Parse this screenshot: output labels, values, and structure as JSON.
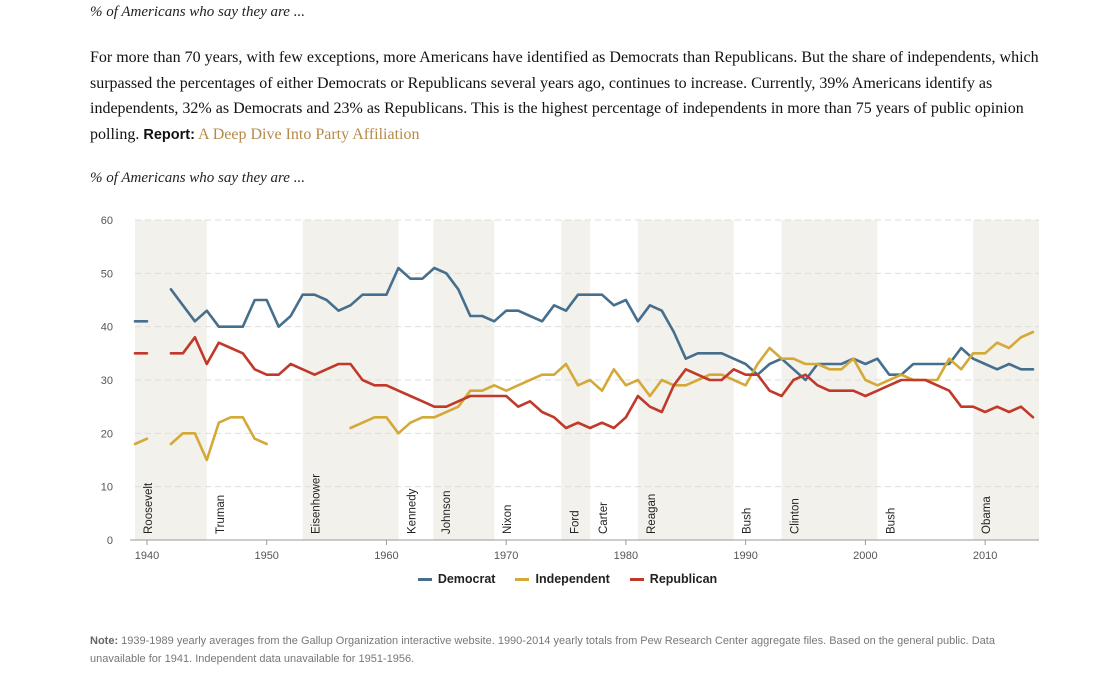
{
  "header": {
    "caption": "% of Americans who say they are ...",
    "intro": "For more than 70 years, with few exceptions, more Americans have identified as Democrats than Republicans. But the share of independents, which surpassed the percentages of either Democrats or Republicans several years ago, continues to increase. Currently, 39% Americans identify as independents, 32% as Democrats and 23% as Republicans. This is the highest percentage of independents in more than 75 years of public opinion polling.",
    "report_label": "Report:",
    "report_link": "A Deep Dive Into Party Affiliation"
  },
  "chart_caption": "% of Americans who say they are ...",
  "colors": {
    "democrat": "#466f8e",
    "independent": "#d4a937",
    "republican": "#c0392b",
    "band": "#f3f1ec",
    "grid": "#dddddd"
  },
  "note": {
    "label": "Note:",
    "text": "1939-1989 yearly averages from the Gallup Organization interactive website. 1990-2014 yearly totals from Pew Research Center aggregate files. Based on the general public. Data unavailable for 1941. Independent data unavailable for 1951-1956."
  },
  "chart_data": {
    "type": "line",
    "title": "",
    "xlabel": "",
    "ylabel": "",
    "xlim": [
      1939,
      2014
    ],
    "ylim": [
      0,
      60
    ],
    "y_ticks": [
      0,
      10,
      20,
      30,
      40,
      50,
      60
    ],
    "x_ticks": [
      1940,
      1950,
      1960,
      1970,
      1980,
      1990,
      2000,
      2010
    ],
    "grid": true,
    "legend_position": "bottom-center",
    "presidencies": [
      {
        "name": "Roosevelt",
        "start": 1939,
        "end": 1945,
        "shaded": true
      },
      {
        "name": "Truman",
        "start": 1945,
        "end": 1953,
        "shaded": false
      },
      {
        "name": "Eisenhower",
        "start": 1953,
        "end": 1961,
        "shaded": true
      },
      {
        "name": "Kennedy",
        "start": 1961,
        "end": 1963.9,
        "shaded": false
      },
      {
        "name": "Johnson",
        "start": 1963.9,
        "end": 1969,
        "shaded": true
      },
      {
        "name": "Nixon",
        "start": 1969,
        "end": 1974.6,
        "shaded": false
      },
      {
        "name": "Ford",
        "start": 1974.6,
        "end": 1977,
        "shaded": true
      },
      {
        "name": "Carter",
        "start": 1977,
        "end": 1981,
        "shaded": false
      },
      {
        "name": "Reagan",
        "start": 1981,
        "end": 1989,
        "shaded": true
      },
      {
        "name": "Bush",
        "start": 1989,
        "end": 1993,
        "shaded": false
      },
      {
        "name": "Clinton",
        "start": 1993,
        "end": 2001,
        "shaded": true
      },
      {
        "name": "Bush",
        "start": 2001,
        "end": 2009,
        "shaded": false
      },
      {
        "name": "Obama",
        "start": 2009,
        "end": 2014.5,
        "shaded": true
      }
    ],
    "series": [
      {
        "name": "Democrat",
        "segments": [
          [
            [
              1939,
              41
            ],
            [
              1940,
              41
            ]
          ],
          [
            [
              1942,
              47
            ],
            [
              1943,
              44
            ],
            [
              1944,
              41
            ],
            [
              1945,
              43
            ],
            [
              1946,
              40
            ],
            [
              1947,
              40
            ],
            [
              1948,
              40
            ],
            [
              1949,
              45
            ],
            [
              1950,
              45
            ],
            [
              1951,
              40
            ],
            [
              1952,
              42
            ],
            [
              1953,
              46
            ],
            [
              1954,
              46
            ],
            [
              1955,
              45
            ],
            [
              1956,
              43
            ],
            [
              1957,
              44
            ],
            [
              1958,
              46
            ],
            [
              1959,
              46
            ],
            [
              1960,
              46
            ],
            [
              1961,
              51
            ],
            [
              1962,
              49
            ],
            [
              1963,
              49
            ],
            [
              1964,
              51
            ],
            [
              1965,
              50
            ],
            [
              1966,
              47
            ],
            [
              1967,
              42
            ],
            [
              1968,
              42
            ],
            [
              1969,
              41
            ],
            [
              1970,
              43
            ],
            [
              1971,
              43
            ],
            [
              1972,
              42
            ],
            [
              1973,
              41
            ],
            [
              1974,
              44
            ],
            [
              1975,
              43
            ],
            [
              1976,
              46
            ],
            [
              1977,
              46
            ],
            [
              1978,
              46
            ],
            [
              1979,
              44
            ],
            [
              1980,
              45
            ],
            [
              1981,
              41
            ],
            [
              1982,
              44
            ],
            [
              1983,
              43
            ],
            [
              1984,
              39
            ],
            [
              1985,
              34
            ],
            [
              1986,
              35
            ],
            [
              1987,
              35
            ],
            [
              1988,
              35
            ],
            [
              1989,
              34
            ],
            [
              1990,
              33
            ],
            [
              1991,
              31
            ],
            [
              1992,
              33
            ],
            [
              1993,
              34
            ],
            [
              1994,
              32
            ],
            [
              1995,
              30
            ],
            [
              1996,
              33
            ],
            [
              1997,
              33
            ],
            [
              1998,
              33
            ],
            [
              1999,
              34
            ],
            [
              2000,
              33
            ],
            [
              2001,
              34
            ],
            [
              2002,
              31
            ],
            [
              2003,
              31
            ],
            [
              2004,
              33
            ],
            [
              2005,
              33
            ],
            [
              2006,
              33
            ],
            [
              2007,
              33
            ],
            [
              2008,
              36
            ],
            [
              2009,
              34
            ],
            [
              2010,
              33
            ],
            [
              2011,
              32
            ],
            [
              2012,
              33
            ],
            [
              2013,
              32
            ],
            [
              2014,
              32
            ]
          ]
        ]
      },
      {
        "name": "Independent",
        "segments": [
          [
            [
              1939,
              18
            ],
            [
              1940,
              19
            ]
          ],
          [
            [
              1942,
              18
            ],
            [
              1943,
              20
            ],
            [
              1944,
              20
            ],
            [
              1945,
              15
            ],
            [
              1946,
              22
            ],
            [
              1947,
              23
            ],
            [
              1948,
              23
            ],
            [
              1949,
              19
            ],
            [
              1950,
              18
            ]
          ],
          [
            [
              1957,
              21
            ],
            [
              1958,
              22
            ],
            [
              1959,
              23
            ],
            [
              1960,
              23
            ],
            [
              1961,
              20
            ],
            [
              1962,
              22
            ],
            [
              1963,
              23
            ],
            [
              1964,
              23
            ],
            [
              1965,
              24
            ],
            [
              1966,
              25
            ],
            [
              1967,
              28
            ],
            [
              1968,
              28
            ],
            [
              1969,
              29
            ],
            [
              1970,
              28
            ],
            [
              1971,
              29
            ],
            [
              1972,
              30
            ],
            [
              1973,
              31
            ],
            [
              1974,
              31
            ],
            [
              1975,
              33
            ],
            [
              1976,
              29
            ],
            [
              1977,
              30
            ],
            [
              1978,
              28
            ],
            [
              1979,
              32
            ],
            [
              1980,
              29
            ],
            [
              1981,
              30
            ],
            [
              1982,
              27
            ],
            [
              1983,
              30
            ],
            [
              1984,
              29
            ],
            [
              1985,
              29
            ],
            [
              1986,
              30
            ],
            [
              1987,
              31
            ],
            [
              1988,
              31
            ],
            [
              1989,
              30
            ],
            [
              1990,
              29
            ],
            [
              1991,
              33
            ],
            [
              1992,
              36
            ],
            [
              1993,
              34
            ],
            [
              1994,
              34
            ],
            [
              1995,
              33
            ],
            [
              1996,
              33
            ],
            [
              1997,
              32
            ],
            [
              1998,
              32
            ],
            [
              1999,
              34
            ],
            [
              2000,
              30
            ],
            [
              2001,
              29
            ],
            [
              2002,
              30
            ],
            [
              2003,
              31
            ],
            [
              2004,
              30
            ],
            [
              2005,
              30
            ],
            [
              2006,
              30
            ],
            [
              2007,
              34
            ],
            [
              2008,
              32
            ],
            [
              2009,
              35
            ],
            [
              2010,
              35
            ],
            [
              2011,
              37
            ],
            [
              2012,
              36
            ],
            [
              2013,
              38
            ],
            [
              2014,
              39
            ]
          ]
        ]
      },
      {
        "name": "Republican",
        "segments": [
          [
            [
              1939,
              35
            ],
            [
              1940,
              35
            ]
          ],
          [
            [
              1942,
              35
            ],
            [
              1943,
              35
            ],
            [
              1944,
              38
            ],
            [
              1945,
              33
            ],
            [
              1946,
              37
            ],
            [
              1947,
              36
            ],
            [
              1948,
              35
            ],
            [
              1949,
              32
            ],
            [
              1950,
              31
            ],
            [
              1951,
              31
            ],
            [
              1952,
              33
            ],
            [
              1953,
              32
            ],
            [
              1954,
              31
            ],
            [
              1955,
              32
            ],
            [
              1956,
              33
            ],
            [
              1957,
              33
            ],
            [
              1958,
              30
            ],
            [
              1959,
              29
            ],
            [
              1960,
              29
            ],
            [
              1961,
              28
            ],
            [
              1962,
              27
            ],
            [
              1963,
              26
            ],
            [
              1964,
              25
            ],
            [
              1965,
              25
            ],
            [
              1966,
              26
            ],
            [
              1967,
              27
            ],
            [
              1968,
              27
            ],
            [
              1969,
              27
            ],
            [
              1970,
              27
            ],
            [
              1971,
              25
            ],
            [
              1972,
              26
            ],
            [
              1973,
              24
            ],
            [
              1974,
              23
            ],
            [
              1975,
              21
            ],
            [
              1976,
              22
            ],
            [
              1977,
              21
            ],
            [
              1978,
              22
            ],
            [
              1979,
              21
            ],
            [
              1980,
              23
            ],
            [
              1981,
              27
            ],
            [
              1982,
              25
            ],
            [
              1983,
              24
            ],
            [
              1984,
              29
            ],
            [
              1985,
              32
            ],
            [
              1986,
              31
            ],
            [
              1987,
              30
            ],
            [
              1988,
              30
            ],
            [
              1989,
              32
            ],
            [
              1990,
              31
            ],
            [
              1991,
              31
            ],
            [
              1992,
              28
            ],
            [
              1993,
              27
            ],
            [
              1994,
              30
            ],
            [
              1995,
              31
            ],
            [
              1996,
              29
            ],
            [
              1997,
              28
            ],
            [
              1998,
              28
            ],
            [
              1999,
              28
            ],
            [
              2000,
              27
            ],
            [
              2001,
              28
            ],
            [
              2002,
              29
            ],
            [
              2003,
              30
            ],
            [
              2004,
              30
            ],
            [
              2005,
              30
            ],
            [
              2006,
              29
            ],
            [
              2007,
              28
            ],
            [
              2008,
              25
            ],
            [
              2009,
              25
            ],
            [
              2010,
              24
            ],
            [
              2011,
              25
            ],
            [
              2012,
              24
            ],
            [
              2013,
              25
            ],
            [
              2014,
              23
            ]
          ]
        ]
      }
    ]
  }
}
